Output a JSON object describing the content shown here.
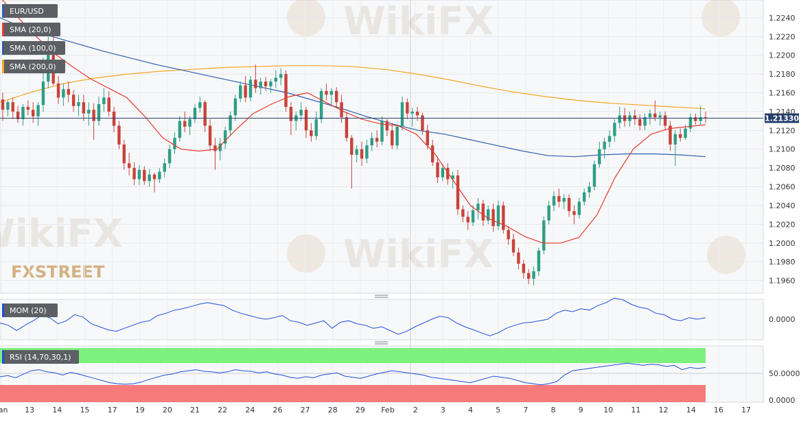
{
  "watermark": {
    "brand": "WikiFX",
    "logo_text": "FXSTREET"
  },
  "colors": {
    "sma20": "#e53a2d",
    "sma100": "#2f5fad",
    "sma200": "#f5a623",
    "bull": "#2e9e86",
    "bear": "#c8433a",
    "mom": "#1f4fd8",
    "rsi": "#1f4fd8",
    "rsi_overbought": "#7ef07e",
    "rsi_oversold": "#f77a7a",
    "price_line": "#27406b",
    "label_bg": "#5c5f63"
  },
  "chart_data": [
    {
      "type": "candlestick",
      "title": "EUR/USD",
      "legend": [
        "SMA (20,0)",
        "SMA (100,0)",
        "SMA (200,0)"
      ],
      "y_ticks": [
        "1.2240",
        "1.2220",
        "1.2200",
        "1.2180",
        "1.2160",
        "1.2140",
        "1.2120",
        "1.2100",
        "1.2080",
        "1.2060",
        "1.2040",
        "1.2020",
        "1.2000",
        "1.1980",
        "1.1960"
      ],
      "ylim": [
        1.1948,
        1.2256
      ],
      "current_price": 1.2133,
      "current_price_label": "1.21330",
      "x_ticks": [
        "Jan",
        "13",
        "14",
        "15",
        "17",
        "19",
        "20",
        "21",
        "22",
        "24",
        "26",
        "27",
        "28",
        "29",
        "Feb",
        "2",
        "3",
        "4",
        "5",
        "7",
        "8",
        "9",
        "10",
        "11",
        "12",
        "14",
        "16",
        "17"
      ],
      "candles": [
        [
          1.2153,
          1.216,
          1.213,
          1.2142
        ],
        [
          1.2142,
          1.2152,
          1.2135,
          1.215
        ],
        [
          1.215,
          1.2155,
          1.2132,
          1.214
        ],
        [
          1.214,
          1.2146,
          1.2128,
          1.2132
        ],
        [
          1.2132,
          1.2148,
          1.2125,
          1.2145
        ],
        [
          1.2145,
          1.2152,
          1.2136,
          1.2142
        ],
        [
          1.2142,
          1.215,
          1.2128,
          1.2135
        ],
        [
          1.2135,
          1.215,
          1.2125,
          1.2147
        ],
        [
          1.2147,
          1.2198,
          1.214,
          1.2172
        ],
        [
          1.2172,
          1.222,
          1.2165,
          1.2205
        ],
        [
          1.2205,
          1.2224,
          1.2168,
          1.217
        ],
        [
          1.217,
          1.2178,
          1.2148,
          1.2155
        ],
        [
          1.2155,
          1.217,
          1.2146,
          1.2164
        ],
        [
          1.2164,
          1.2172,
          1.215,
          1.2158
        ],
        [
          1.2158,
          1.2163,
          1.214,
          1.2146
        ],
        [
          1.2146,
          1.2158,
          1.2135,
          1.215
        ],
        [
          1.215,
          1.2158,
          1.213,
          1.2138
        ],
        [
          1.2138,
          1.215,
          1.2125,
          1.2142
        ],
        [
          1.2142,
          1.2149,
          1.211,
          1.213
        ],
        [
          1.213,
          1.2156,
          1.2125,
          1.2148
        ],
        [
          1.2148,
          1.2165,
          1.214,
          1.2155
        ],
        [
          1.2155,
          1.2162,
          1.2135,
          1.214
        ],
        [
          1.214,
          1.2145,
          1.2118,
          1.2125
        ],
        [
          1.2125,
          1.213,
          1.21,
          1.2105
        ],
        [
          1.2105,
          1.211,
          1.2078,
          1.2085
        ],
        [
          1.2085,
          1.2096,
          1.2072,
          1.208
        ],
        [
          1.208,
          1.2086,
          1.2062,
          1.2068
        ],
        [
          1.2068,
          1.2083,
          1.2062,
          1.2078
        ],
        [
          1.2078,
          1.2082,
          1.2062,
          1.2066
        ],
        [
          1.2066,
          1.2079,
          1.206,
          1.2073
        ],
        [
          1.2073,
          1.2075,
          1.2054,
          1.2068
        ],
        [
          1.2068,
          1.208,
          1.2064,
          1.2076
        ],
        [
          1.2076,
          1.209,
          1.207,
          1.2085
        ],
        [
          1.2085,
          1.2105,
          1.208,
          1.21
        ],
        [
          1.21,
          1.2118,
          1.2095,
          1.2112
        ],
        [
          1.2112,
          1.2135,
          1.2108,
          1.213
        ],
        [
          1.213,
          1.214,
          1.2118,
          1.2124
        ],
        [
          1.2124,
          1.2135,
          1.2115,
          1.2132
        ],
        [
          1.2132,
          1.2148,
          1.2128,
          1.2144
        ],
        [
          1.2144,
          1.2156,
          1.2139,
          1.215
        ],
        [
          1.215,
          1.2152,
          1.2118,
          1.2125
        ],
        [
          1.2125,
          1.2132,
          1.2098,
          1.2104
        ],
        [
          1.2104,
          1.2112,
          1.2078,
          1.2098
        ],
        [
          1.2098,
          1.2112,
          1.2088,
          1.2106
        ],
        [
          1.2106,
          1.2124,
          1.21,
          1.212
        ],
        [
          1.212,
          1.214,
          1.2115,
          1.2136
        ],
        [
          1.2136,
          1.2158,
          1.213,
          1.2154
        ],
        [
          1.2154,
          1.2172,
          1.215,
          1.2168
        ],
        [
          1.2168,
          1.2178,
          1.215,
          1.2155
        ],
        [
          1.2155,
          1.2178,
          1.2151,
          1.2174
        ],
        [
          1.2174,
          1.219,
          1.216,
          1.2165
        ],
        [
          1.2165,
          1.2176,
          1.2158,
          1.2172
        ],
        [
          1.2172,
          1.2177,
          1.2162,
          1.2167
        ],
        [
          1.2167,
          1.2175,
          1.216,
          1.2172
        ],
        [
          1.2172,
          1.2184,
          1.2165,
          1.2176
        ],
        [
          1.2176,
          1.2186,
          1.2168,
          1.218
        ],
        [
          1.218,
          1.2184,
          1.214,
          1.2145
        ],
        [
          1.2145,
          1.215,
          1.2115,
          1.213
        ],
        [
          1.213,
          1.214,
          1.212,
          1.2136
        ],
        [
          1.2136,
          1.215,
          1.213,
          1.2142
        ],
        [
          1.2142,
          1.2145,
          1.2112,
          1.212
        ],
        [
          1.212,
          1.2128,
          1.2108,
          1.2114
        ],
        [
          1.2114,
          1.214,
          1.211,
          1.2132
        ],
        [
          1.2132,
          1.2165,
          1.2128,
          1.2162
        ],
        [
          1.2162,
          1.217,
          1.2152,
          1.2158
        ],
        [
          1.2158,
          1.2165,
          1.2145,
          1.2162
        ],
        [
          1.2162,
          1.2166,
          1.2144,
          1.215
        ],
        [
          1.215,
          1.2158,
          1.2128,
          1.2134
        ],
        [
          1.2134,
          1.214,
          1.2108,
          1.2112
        ],
        [
          1.2112,
          1.2115,
          1.2058,
          1.2094
        ],
        [
          1.2094,
          1.2104,
          1.2086,
          1.21
        ],
        [
          1.21,
          1.2108,
          1.2082,
          1.209
        ],
        [
          1.209,
          1.211,
          1.2085,
          1.2104
        ],
        [
          1.2104,
          1.2118,
          1.2098,
          1.2112
        ],
        [
          1.2112,
          1.212,
          1.2102,
          1.2108
        ],
        [
          1.2108,
          1.2135,
          1.2104,
          1.213
        ],
        [
          1.213,
          1.2132,
          1.2114,
          1.212
        ],
        [
          1.212,
          1.2128,
          1.21,
          1.2104
        ],
        [
          1.2104,
          1.2126,
          1.21,
          1.2124
        ],
        [
          1.2124,
          1.2156,
          1.212,
          1.215
        ],
        [
          1.215,
          1.2154,
          1.2132,
          1.2138
        ],
        [
          1.2138,
          1.2144,
          1.2124,
          1.214
        ],
        [
          1.214,
          1.2145,
          1.213,
          1.2136
        ],
        [
          1.2136,
          1.2139,
          1.2115,
          1.212
        ],
        [
          1.212,
          1.2126,
          1.21,
          1.2104
        ],
        [
          1.2104,
          1.211,
          1.2082,
          1.2086
        ],
        [
          1.2086,
          1.2092,
          1.2064,
          1.207
        ],
        [
          1.207,
          1.2084,
          1.2066,
          1.208
        ],
        [
          1.208,
          1.2085,
          1.2062,
          1.2068
        ],
        [
          1.2068,
          1.2076,
          1.2058,
          1.2072
        ],
        [
          1.2072,
          1.2078,
          1.203,
          1.2036
        ],
        [
          1.2036,
          1.204,
          1.2022,
          1.2028
        ],
        [
          1.2028,
          1.2034,
          1.2014,
          1.2022
        ],
        [
          1.2022,
          1.204,
          1.2018,
          1.2035
        ],
        [
          1.2035,
          1.2048,
          1.2025,
          1.2042
        ],
        [
          1.2042,
          1.2046,
          1.2018,
          1.2024
        ],
        [
          1.2024,
          1.204,
          1.202,
          1.2036
        ],
        [
          1.2036,
          1.2042,
          1.2012,
          1.2018
        ],
        [
          1.2018,
          1.2045,
          1.2014,
          1.204
        ],
        [
          1.204,
          1.2044,
          1.201,
          1.2014
        ],
        [
          1.2014,
          1.2018,
          1.1998,
          1.2004
        ],
        [
          1.2004,
          1.201,
          1.1986,
          1.199
        ],
        [
          1.199,
          1.1995,
          1.1972,
          1.1978
        ],
        [
          1.1978,
          1.1982,
          1.1962,
          1.1968
        ],
        [
          1.1968,
          1.1972,
          1.1956,
          1.1962
        ],
        [
          1.1962,
          1.1975,
          1.1955,
          1.197
        ],
        [
          1.197,
          1.1995,
          1.1965,
          1.1992
        ],
        [
          1.1992,
          1.2028,
          1.1988,
          1.2024
        ],
        [
          1.2024,
          1.2045,
          1.202,
          1.204
        ],
        [
          1.204,
          1.2055,
          1.2034,
          1.205
        ],
        [
          1.205,
          1.2058,
          1.2038,
          1.2044
        ],
        [
          1.2044,
          1.2052,
          1.2036,
          1.2048
        ],
        [
          1.2048,
          1.2052,
          1.2028,
          1.2034
        ],
        [
          1.2034,
          1.204,
          1.202,
          1.203
        ],
        [
          1.203,
          1.2048,
          1.2026,
          1.2044
        ],
        [
          1.2044,
          1.2058,
          1.204,
          1.2054
        ],
        [
          1.2054,
          1.2065,
          1.2048,
          1.206
        ],
        [
          1.206,
          1.2088,
          1.2056,
          1.2084
        ],
        [
          1.2084,
          1.2108,
          1.208,
          1.21
        ],
        [
          1.21,
          1.2112,
          1.209,
          1.2108
        ],
        [
          1.2108,
          1.212,
          1.2102,
          1.2114
        ],
        [
          1.2114,
          1.2132,
          1.2108,
          1.2128
        ],
        [
          1.2128,
          1.2145,
          1.2122,
          1.2136
        ],
        [
          1.2136,
          1.2144,
          1.2124,
          1.213
        ],
        [
          1.213,
          1.214,
          1.2124,
          1.2136
        ],
        [
          1.2136,
          1.2142,
          1.2126,
          1.2132
        ],
        [
          1.2132,
          1.2137,
          1.212,
          1.2125
        ],
        [
          1.2125,
          1.2138,
          1.212,
          1.2134
        ],
        [
          1.2134,
          1.2142,
          1.2126,
          1.2138
        ],
        [
          1.2138,
          1.2152,
          1.213,
          1.2134
        ],
        [
          1.2134,
          1.214,
          1.2125,
          1.2136
        ],
        [
          1.2136,
          1.214,
          1.212,
          1.2125
        ],
        [
          1.2125,
          1.213,
          1.2098,
          1.2105
        ],
        [
          1.2105,
          1.212,
          1.2082,
          1.2116
        ],
        [
          1.2116,
          1.2122,
          1.2108,
          1.2112
        ],
        [
          1.2112,
          1.2126,
          1.211,
          1.2122
        ],
        [
          1.2122,
          1.2138,
          1.2118,
          1.2134
        ],
        [
          1.2134,
          1.2138,
          1.2126,
          1.213
        ],
        [
          1.213,
          1.2146,
          1.2126,
          1.2134
        ],
        [
          1.2134,
          1.214,
          1.2128,
          1.2133
        ]
      ],
      "sma20": [
        1.2262,
        1.224,
        1.222,
        1.2202,
        1.2188,
        1.2175,
        1.2165,
        1.2155,
        1.2135,
        1.2112,
        1.21,
        1.2098,
        1.21,
        1.212,
        1.2138,
        1.2148,
        1.2156,
        1.216,
        1.215,
        1.214,
        1.2132,
        1.2127,
        1.2125,
        1.2116,
        1.2096,
        1.2068,
        1.204,
        1.2026,
        1.2018,
        1.2007,
        1.2,
        1.2,
        1.2006,
        1.203,
        1.207,
        1.21,
        1.2116,
        1.2122,
        1.2124,
        1.2126
      ],
      "sma100": [
        1.224,
        1.2228,
        1.222,
        1.2212,
        1.2204,
        1.2197,
        1.219,
        1.2184,
        1.2178,
        1.2172,
        1.2166,
        1.216,
        1.2152,
        1.2144,
        1.2135,
        1.2127,
        1.212,
        1.2116,
        1.211,
        1.2104,
        1.2098,
        1.2093,
        1.2092,
        1.2094,
        1.2095,
        1.2095,
        1.2094,
        1.2092
      ],
      "sma200": [
        1.215,
        1.2161,
        1.217,
        1.2176,
        1.218,
        1.2183,
        1.2185,
        1.2187,
        1.2188,
        1.2189,
        1.2189,
        1.2188,
        1.2185,
        1.218,
        1.2174,
        1.2167,
        1.2161,
        1.2156,
        1.2152,
        1.2149,
        1.2147,
        1.2145,
        1.2143
      ],
      "mom_ticks": [
        "0.0000"
      ],
      "mom_label": "MOM (20)",
      "mom": [
        -5,
        -8,
        -15,
        -8,
        -2,
        5,
        2,
        -6,
        -2,
        6,
        3,
        -6,
        -10,
        -14,
        -16,
        -12,
        -8,
        -4,
        -2,
        5,
        8,
        12,
        14,
        17,
        20,
        22,
        20,
        18,
        12,
        8,
        5,
        2,
        0,
        2,
        5,
        -2,
        -4,
        -8,
        -5,
        -2,
        -12,
        -4,
        -2,
        -6,
        -8,
        -12,
        -10,
        -15,
        -20,
        -16,
        -10,
        -5,
        0,
        4,
        2,
        -5,
        -10,
        -14,
        -18,
        -22,
        -18,
        -12,
        -8,
        -5,
        -4,
        -2,
        0,
        8,
        12,
        10,
        14,
        12,
        18,
        22,
        28,
        26,
        20,
        16,
        14,
        8,
        6,
        0,
        -2,
        2,
        0,
        2
      ],
      "rsi_ticks": [
        "50.0000",
        "0.0000"
      ],
      "rsi_label": "RSI (14,70,30,1)",
      "rsi_upper": 70,
      "rsi_lower": 30,
      "rsi": [
        47,
        49,
        45,
        52,
        58,
        60,
        56,
        54,
        50,
        55,
        52,
        48,
        44,
        40,
        36,
        34,
        33,
        34,
        37,
        42,
        46,
        50,
        52,
        56,
        58,
        60,
        57,
        56,
        54,
        56,
        60,
        58,
        57,
        54,
        56,
        52,
        50,
        46,
        44,
        47,
        45,
        50,
        52,
        54,
        48,
        46,
        44,
        48,
        52,
        55,
        58,
        56,
        54,
        52,
        50,
        46,
        44,
        42,
        40,
        38,
        36,
        40,
        44,
        48,
        46,
        44,
        40,
        36,
        34,
        32,
        34,
        38,
        50,
        58,
        60,
        62,
        64,
        66,
        68,
        70,
        72,
        70,
        68,
        70,
        69,
        66,
        68,
        60,
        64,
        62,
        64
      ],
      "x_positions": []
    }
  ]
}
